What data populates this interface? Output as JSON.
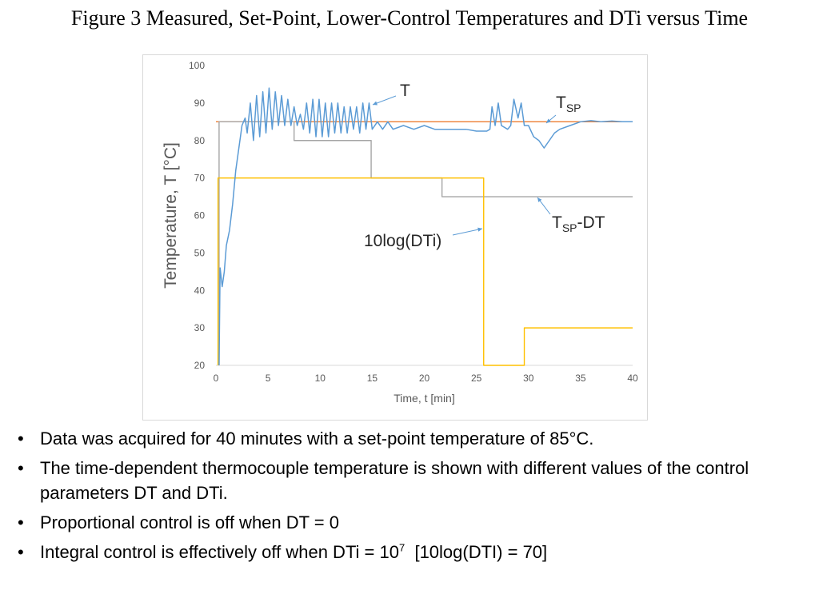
{
  "slide_title": "Figure 3 Measured, Set-Point, Lower-Control Temperatures and DTi versus Time",
  "chart_data": {
    "type": "line",
    "x_label": "Time, t [min]",
    "y_label": "Temperature, T [°C]",
    "xlim": [
      0,
      40
    ],
    "xticks": [
      0,
      5,
      10,
      15,
      20,
      25,
      30,
      35,
      40
    ],
    "ylim": [
      20,
      100
    ],
    "yticks": [
      20,
      30,
      40,
      50,
      60,
      70,
      80,
      90,
      100
    ],
    "grid": false,
    "series": [
      {
        "color": "#ed7d31",
        "x": [
          0,
          40
        ],
        "values": [
          85,
          85
        ]
      },
      {
        "color": "#a5a5a5",
        "x": [
          0.3,
          0.3,
          7.5,
          7.5,
          14.9,
          14.9,
          21.7,
          21.7,
          40
        ],
        "values": [
          20,
          85,
          85,
          80,
          80,
          70,
          70,
          65,
          65
        ]
      },
      {
        "color": "#ffc000",
        "x": [
          0.2,
          0.2,
          25.7,
          25.7,
          29.6,
          29.6,
          40
        ],
        "values": [
          20,
          70,
          70,
          20,
          20,
          30,
          30
        ]
      },
      {
        "color": "#5b9bd5",
        "x": [
          0.3,
          0.4,
          0.6,
          0.8,
          1.0,
          1.3,
          1.6,
          1.9,
          2.2,
          2.5,
          2.8,
          3.0,
          3.3,
          3.6,
          3.9,
          4.2,
          4.5,
          4.8,
          5.1,
          5.4,
          5.7,
          6.0,
          6.3,
          6.6,
          6.9,
          7.2,
          7.5,
          7.8,
          8.1,
          8.4,
          8.7,
          9.0,
          9.3,
          9.6,
          9.9,
          10.2,
          10.5,
          10.8,
          11.1,
          11.4,
          11.7,
          12.0,
          12.3,
          12.6,
          12.9,
          13.2,
          13.5,
          13.8,
          14.1,
          14.4,
          14.7,
          15.0,
          15.5,
          16,
          16.5,
          17,
          18,
          19,
          20,
          21,
          22,
          23,
          24,
          25,
          26,
          26.3,
          26.5,
          26.8,
          27.1,
          27.4,
          28.0,
          28.3,
          28.6,
          29.0,
          29.3,
          29.6,
          30.0,
          30.5,
          31,
          31.5,
          32,
          32.5,
          33,
          34,
          35,
          36,
          37,
          38,
          39,
          40
        ],
        "values": [
          20,
          46,
          41,
          45,
          52,
          56,
          63,
          72,
          78,
          84,
          86,
          82,
          90,
          80,
          92,
          81,
          93,
          82,
          94,
          83,
          93,
          84,
          92,
          84,
          91,
          84,
          89,
          84,
          87,
          83,
          90,
          82,
          91,
          81,
          91,
          81,
          90,
          81,
          90,
          82,
          90,
          82,
          89,
          82,
          89,
          83,
          89,
          82,
          90,
          83,
          90,
          83,
          85,
          83,
          85,
          83,
          84,
          83,
          84,
          83,
          83,
          83,
          83,
          82.5,
          82.5,
          83,
          89,
          84,
          90,
          84,
          83,
          84,
          91,
          86,
          90,
          84,
          84,
          81,
          80,
          78,
          80,
          82,
          83,
          84,
          85,
          85.3,
          85,
          85.2,
          85,
          85
        ]
      }
    ],
    "annotations": [
      {
        "text": "T"
      },
      {
        "text": "T",
        "sub": "SP"
      },
      {
        "text": "T",
        "sub": "SP",
        "after": "-DT"
      },
      {
        "text": "10log(DTi)"
      }
    ]
  },
  "bullets": [
    {
      "text": "Data was acquired for 40 minutes with a set-point temperature of 85°C."
    },
    {
      "text": "The time-dependent thermocouple temperature is shown with different values of the control parameters DT and DTi."
    },
    {
      "text": "Proportional control is off when DT = 0"
    },
    {
      "text": "Integral control is effectively off when DTi = 10",
      "sup": "7",
      "after": "  [10log(DTI) = 70]"
    }
  ]
}
